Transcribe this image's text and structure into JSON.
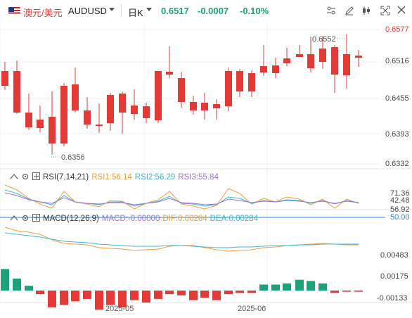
{
  "header": {
    "pair_cn": "澳元/美元",
    "symbol": "AUDUSD",
    "timeframe": "日K",
    "price": "0.6517",
    "change": "-0.0007",
    "change_pct": "-0.10%"
  },
  "chart": {
    "y_ticks": [
      "0.6577",
      "0.6516",
      "0.6455",
      "0.6393",
      "0.6332"
    ],
    "high_label": "0.6552",
    "low_label": "0.6356",
    "x_ticks": [
      "2025-05",
      "2025-06"
    ],
    "up_color": "#1aa37a",
    "down_color": "#e53935"
  },
  "rsi": {
    "name": "RSI(7,14,21)",
    "rsi1": "RSI1:56.14",
    "rsi2": "RSI2:56.29",
    "rsi3": "RSI3:55.84",
    "ticks": [
      "71.36",
      "56.92",
      "50.00",
      "42.48"
    ]
  },
  "macd": {
    "name": "MACD(12,26,9)",
    "macd": "MACD:-0.00000",
    "dif": "DIF:0.00284",
    "dea": "DEA:0.00284",
    "ticks": [
      "0.00483",
      "0.00175",
      "-0.00133"
    ]
  }
}
